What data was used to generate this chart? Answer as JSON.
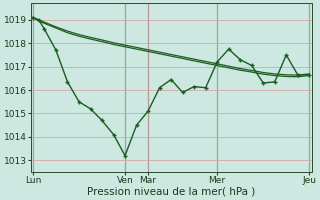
{
  "bg_color": "#cce8e0",
  "grid_color": "#d4a8a8",
  "line_color": "#1a5c20",
  "title": "Pression niveau de la mer( hPa )",
  "ylim": [
    1012.5,
    1019.7
  ],
  "yticks": [
    1013,
    1014,
    1015,
    1016,
    1017,
    1018,
    1019
  ],
  "day_labels": [
    "Lun",
    "Ven",
    "Mar",
    "Mer",
    "Jeu"
  ],
  "day_positions": [
    0,
    8,
    10,
    16,
    24
  ],
  "vlines": [
    0,
    8,
    10,
    16,
    24
  ],
  "line1_x": [
    0,
    0.5,
    1,
    2,
    3,
    4,
    5,
    6,
    7,
    8,
    9,
    10,
    11,
    12,
    13,
    14,
    15,
    16,
    17,
    18,
    19,
    20,
    21,
    22,
    23,
    24
  ],
  "line1_y": [
    1019.1,
    1018.95,
    1018.85,
    1018.65,
    1018.45,
    1018.3,
    1018.18,
    1018.07,
    1017.95,
    1017.85,
    1017.75,
    1017.65,
    1017.55,
    1017.45,
    1017.35,
    1017.25,
    1017.15,
    1017.05,
    1016.95,
    1016.85,
    1016.77,
    1016.68,
    1016.62,
    1016.58,
    1016.57,
    1016.62
  ],
  "line2_x": [
    0,
    0.5,
    1,
    2,
    3,
    4,
    5,
    6,
    7,
    8,
    9,
    10,
    11,
    12,
    13,
    14,
    15,
    16,
    17,
    18,
    19,
    20,
    21,
    22,
    23,
    24
  ],
  "line2_y": [
    1019.1,
    1019.0,
    1018.9,
    1018.7,
    1018.52,
    1018.37,
    1018.25,
    1018.14,
    1018.02,
    1017.92,
    1017.82,
    1017.72,
    1017.62,
    1017.52,
    1017.42,
    1017.32,
    1017.22,
    1017.12,
    1017.02,
    1016.92,
    1016.84,
    1016.75,
    1016.69,
    1016.65,
    1016.64,
    1016.69
  ],
  "line3_x": [
    0,
    0.5,
    1,
    2,
    3,
    4,
    5,
    6,
    7,
    8,
    9,
    10,
    11,
    12,
    13,
    14,
    15,
    16,
    17,
    18,
    19,
    20,
    21,
    22,
    23,
    24
  ],
  "line3_y": [
    1019.1,
    1019.0,
    1018.6,
    1017.7,
    1016.35,
    1015.5,
    1015.2,
    1014.7,
    1014.1,
    1013.2,
    1014.5,
    1015.1,
    1016.1,
    1016.45,
    1015.9,
    1016.15,
    1016.1,
    1017.2,
    1017.75,
    1017.3,
    1017.05,
    1016.3,
    1016.35,
    1017.5,
    1016.65,
    1016.65
  ]
}
